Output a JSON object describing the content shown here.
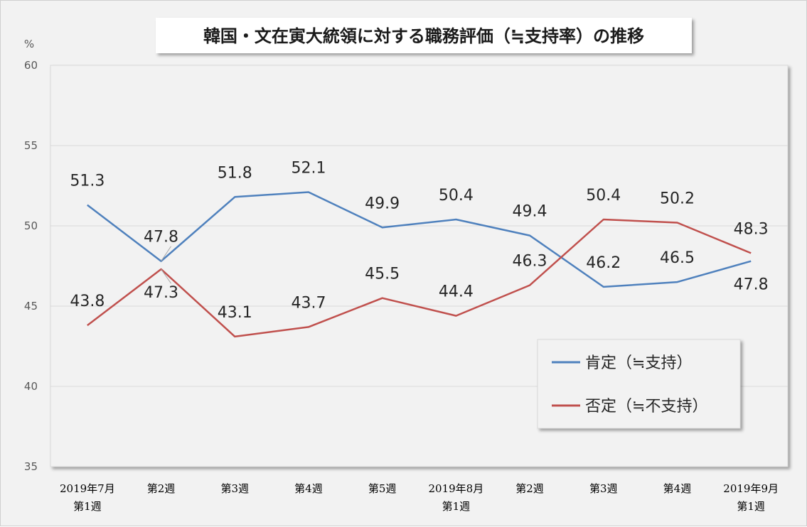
{
  "chart_data": {
    "type": "line",
    "title": "韓国・文在寅大統領に対する職務評価（≒支持率）の推移",
    "unit_label": "%",
    "ylim": [
      35,
      60
    ],
    "yticks": [
      35,
      40,
      45,
      50,
      55,
      60
    ],
    "grid": true,
    "legend_position": "right-middle",
    "categories": [
      [
        "2019年7月",
        "第1週"
      ],
      [
        "第2週"
      ],
      [
        "第3週"
      ],
      [
        "第4週"
      ],
      [
        "第5週"
      ],
      [
        "2019年8月",
        "第1週"
      ],
      [
        "第2週"
      ],
      [
        "第3週"
      ],
      [
        "第4週"
      ],
      [
        "2019年9月",
        "第1週"
      ]
    ],
    "series": [
      {
        "name": "肯定（≒支持）",
        "color": "#4f81bd",
        "values": [
          51.3,
          47.8,
          51.8,
          52.1,
          49.9,
          50.4,
          49.4,
          46.2,
          46.5,
          47.8
        ],
        "label_placement": [
          "above",
          "above",
          "above",
          "above",
          "above",
          "above",
          "above",
          "above",
          "above",
          "below"
        ]
      },
      {
        "name": "否定（≒不支持）",
        "color": "#c0504d",
        "values": [
          43.8,
          47.3,
          43.1,
          43.7,
          45.5,
          44.4,
          46.3,
          50.4,
          50.2,
          48.3
        ],
        "label_placement": [
          "above",
          "below",
          "above",
          "above",
          "above",
          "above",
          "above",
          "above",
          "above",
          "above"
        ]
      }
    ]
  }
}
